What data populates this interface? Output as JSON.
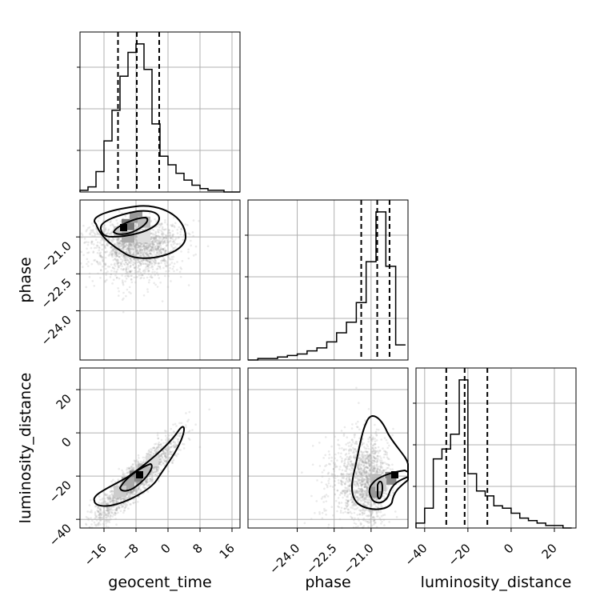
{
  "chart_data": {
    "type": "corner",
    "parameters": [
      "geocent_time",
      "phase",
      "luminosity_distance"
    ],
    "axes": {
      "geocent_time": {
        "label": "geocent_time",
        "range": [
          -22,
          18
        ],
        "ticks": [
          -16,
          -8,
          0,
          8,
          16
        ],
        "tick_labels": [
          "−16",
          "−8",
          "0",
          "8",
          "16"
        ],
        "quantiles": [
          -12.5,
          -7.8,
          -2.2
        ]
      },
      "phase": {
        "label": "phase",
        "range": [
          -26,
          -19.5
        ],
        "ticks": [
          -24.0,
          -22.5,
          -21.0
        ],
        "tick_labels": [
          "−24.0",
          "−22.5",
          "−21.0"
        ],
        "quantiles": [
          -21.4,
          -20.75,
          -20.25
        ]
      },
      "luminosity_distance": {
        "label": "luminosity_distance",
        "range": [
          -44,
          30
        ],
        "ticks": [
          -40,
          -20,
          0,
          20
        ],
        "tick_labels": [
          "−40",
          "−20",
          "0",
          "20"
        ],
        "quantiles": [
          -30,
          -21.5,
          -11
        ]
      }
    },
    "histograms": {
      "geocent_time": {
        "bin_edges": [
          -22,
          -20,
          -18,
          -16,
          -14,
          -12,
          -10,
          -8,
          -6,
          -4,
          -2,
          0,
          2,
          4,
          6,
          8,
          10,
          12,
          14,
          16,
          18
        ],
        "counts": [
          1,
          3,
          12,
          30,
          48,
          68,
          82,
          87,
          72,
          40,
          21,
          16,
          11,
          7,
          4,
          2,
          1,
          1,
          0,
          0
        ]
      },
      "phase": {
        "bin_edges": [
          -26,
          -25.6,
          -25.2,
          -24.8,
          -24.4,
          -24.0,
          -23.6,
          -23.2,
          -22.8,
          -22.4,
          -22.0,
          -21.6,
          -21.2,
          -20.8,
          -20.4,
          -20.0,
          -19.6
        ],
        "counts": [
          0,
          1,
          1,
          2,
          3,
          4,
          6,
          8,
          12,
          18,
          25,
          38,
          65,
          98,
          62,
          10
        ]
      },
      "luminosity_distance": {
        "bin_edges": [
          -44,
          -40,
          -36,
          -32,
          -28,
          -24,
          -20,
          -16,
          -12,
          -8,
          -4,
          0,
          4,
          8,
          12,
          16,
          20,
          24,
          28
        ],
        "counts": [
          2,
          8,
          28,
          32,
          38,
          60,
          22,
          15,
          13,
          9,
          8,
          6,
          4,
          3,
          2,
          1,
          1,
          0
        ]
      }
    },
    "grid": true
  }
}
